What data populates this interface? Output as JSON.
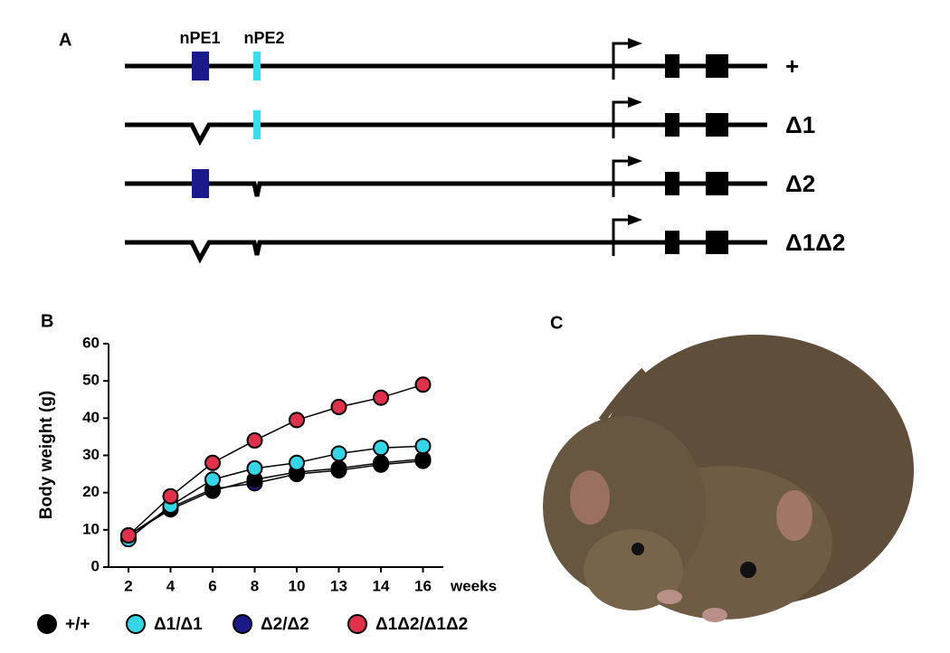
{
  "panel_a": {
    "label": "A",
    "elements": [
      "nPE1",
      "nPE2"
    ],
    "alleles": [
      "+",
      "Δ1",
      "Δ2",
      "Δ1Δ2"
    ]
  },
  "chart_data": {
    "type": "line",
    "panel_label": "B",
    "x_label": "weeks",
    "y_label": "Body weight (g)",
    "categories": [
      "2",
      "4",
      "6",
      "8",
      "10",
      "13",
      "14",
      "16"
    ],
    "ylim": [
      0,
      60
    ],
    "yticks": [
      0,
      10,
      20,
      30,
      40,
      50,
      60
    ],
    "grid": false,
    "legend": "bottom",
    "series": [
      {
        "name": "Δ2/Δ2",
        "color": "#1a1a8c",
        "values": [
          8.5,
          16,
          21,
          22.5,
          25,
          26,
          27.5,
          28.5
        ]
      },
      {
        "name": "+/+",
        "color": "#000000",
        "values": [
          8.5,
          15.5,
          20.5,
          23.5,
          25.5,
          26.5,
          28,
          29
        ]
      },
      {
        "name": "Δ1/Δ1",
        "color": "#33d6e6",
        "values": [
          7.5,
          16.5,
          23.5,
          26.5,
          28,
          30.5,
          32,
          32.5
        ]
      },
      {
        "name": "Δ1Δ2/Δ1Δ2",
        "color": "#e0304a",
        "values": [
          8.5,
          19,
          28,
          34,
          39.5,
          43,
          45.5,
          49
        ]
      }
    ]
  },
  "panel_c": {
    "label": "C"
  }
}
